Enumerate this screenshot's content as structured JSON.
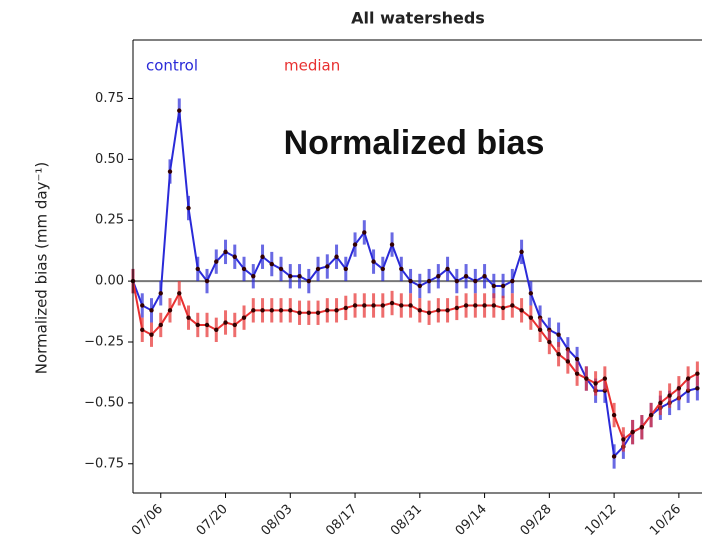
{
  "chart_data": {
    "type": "line",
    "title": "All watersheds",
    "annotation": "Normalized bias",
    "y_label": "Normalized bias (mm day⁻¹)",
    "x": [
      "06/30",
      "07/02",
      "07/04",
      "07/06",
      "07/08",
      "07/10",
      "07/12",
      "07/14",
      "07/16",
      "07/18",
      "07/20",
      "07/22",
      "07/24",
      "07/26",
      "07/28",
      "07/30",
      "08/01",
      "08/03",
      "08/05",
      "08/07",
      "08/09",
      "08/11",
      "08/13",
      "08/15",
      "08/17",
      "08/19",
      "08/21",
      "08/23",
      "08/25",
      "08/27",
      "08/29",
      "08/31",
      "09/02",
      "09/04",
      "09/06",
      "09/08",
      "09/10",
      "09/12",
      "09/14",
      "09/16",
      "09/18",
      "09/20",
      "09/22",
      "09/24",
      "09/26",
      "09/28",
      "09/30",
      "10/02",
      "10/04",
      "10/06",
      "10/08",
      "10/10",
      "10/12",
      "10/14",
      "10/16",
      "10/18",
      "10/20",
      "10/22",
      "10/24",
      "10/26",
      "10/28",
      "10/30"
    ],
    "series": [
      {
        "name": "control",
        "color": "#2a2ad8",
        "error": 0.05,
        "values": [
          0.0,
          -0.1,
          -0.12,
          -0.05,
          0.45,
          0.7,
          0.3,
          0.05,
          0.0,
          0.08,
          0.12,
          0.1,
          0.05,
          0.02,
          0.1,
          0.07,
          0.05,
          0.02,
          0.02,
          0.0,
          0.05,
          0.06,
          0.1,
          0.05,
          0.15,
          0.2,
          0.08,
          0.05,
          0.15,
          0.05,
          0.0,
          -0.02,
          0.0,
          0.02,
          0.05,
          0.0,
          0.02,
          0.0,
          0.02,
          -0.02,
          -0.02,
          0.0,
          0.12,
          -0.05,
          -0.15,
          -0.2,
          -0.22,
          -0.28,
          -0.32,
          -0.4,
          -0.45,
          -0.45,
          -0.72,
          -0.68,
          -0.62,
          -0.6,
          -0.55,
          -0.52,
          -0.5,
          -0.48,
          -0.45,
          -0.44
        ]
      },
      {
        "name": "median",
        "color": "#e83030",
        "error": 0.05,
        "values": [
          0.0,
          -0.2,
          -0.22,
          -0.18,
          -0.12,
          -0.05,
          -0.15,
          -0.18,
          -0.18,
          -0.2,
          -0.17,
          -0.18,
          -0.15,
          -0.12,
          -0.12,
          -0.12,
          -0.12,
          -0.12,
          -0.13,
          -0.13,
          -0.13,
          -0.12,
          -0.12,
          -0.11,
          -0.1,
          -0.1,
          -0.1,
          -0.1,
          -0.09,
          -0.1,
          -0.1,
          -0.12,
          -0.13,
          -0.12,
          -0.12,
          -0.11,
          -0.1,
          -0.1,
          -0.1,
          -0.1,
          -0.11,
          -0.1,
          -0.12,
          -0.15,
          -0.2,
          -0.25,
          -0.3,
          -0.33,
          -0.38,
          -0.4,
          -0.42,
          -0.4,
          -0.55,
          -0.65,
          -0.62,
          -0.6,
          -0.55,
          -0.5,
          -0.47,
          -0.44,
          -0.4,
          -0.38
        ]
      }
    ],
    "xlim": [
      "06/30",
      "10/31"
    ],
    "xticks": [
      "07/06",
      "07/20",
      "08/03",
      "08/17",
      "08/31",
      "09/14",
      "09/28",
      "10/12",
      "10/26"
    ],
    "ylim": [
      -0.87,
      0.99
    ],
    "yticks": [
      {
        "value": 0.75,
        "label": "0.75"
      },
      {
        "value": 0.5,
        "label": "0.50"
      },
      {
        "value": 0.25,
        "label": "0.25"
      },
      {
        "value": 0,
        "label": "0.00"
      },
      {
        "value": -0.25,
        "label": "−0.25"
      },
      {
        "value": -0.5,
        "label": "−0.50"
      },
      {
        "value": -0.75,
        "label": "−0.75"
      }
    ],
    "hline": 0
  }
}
